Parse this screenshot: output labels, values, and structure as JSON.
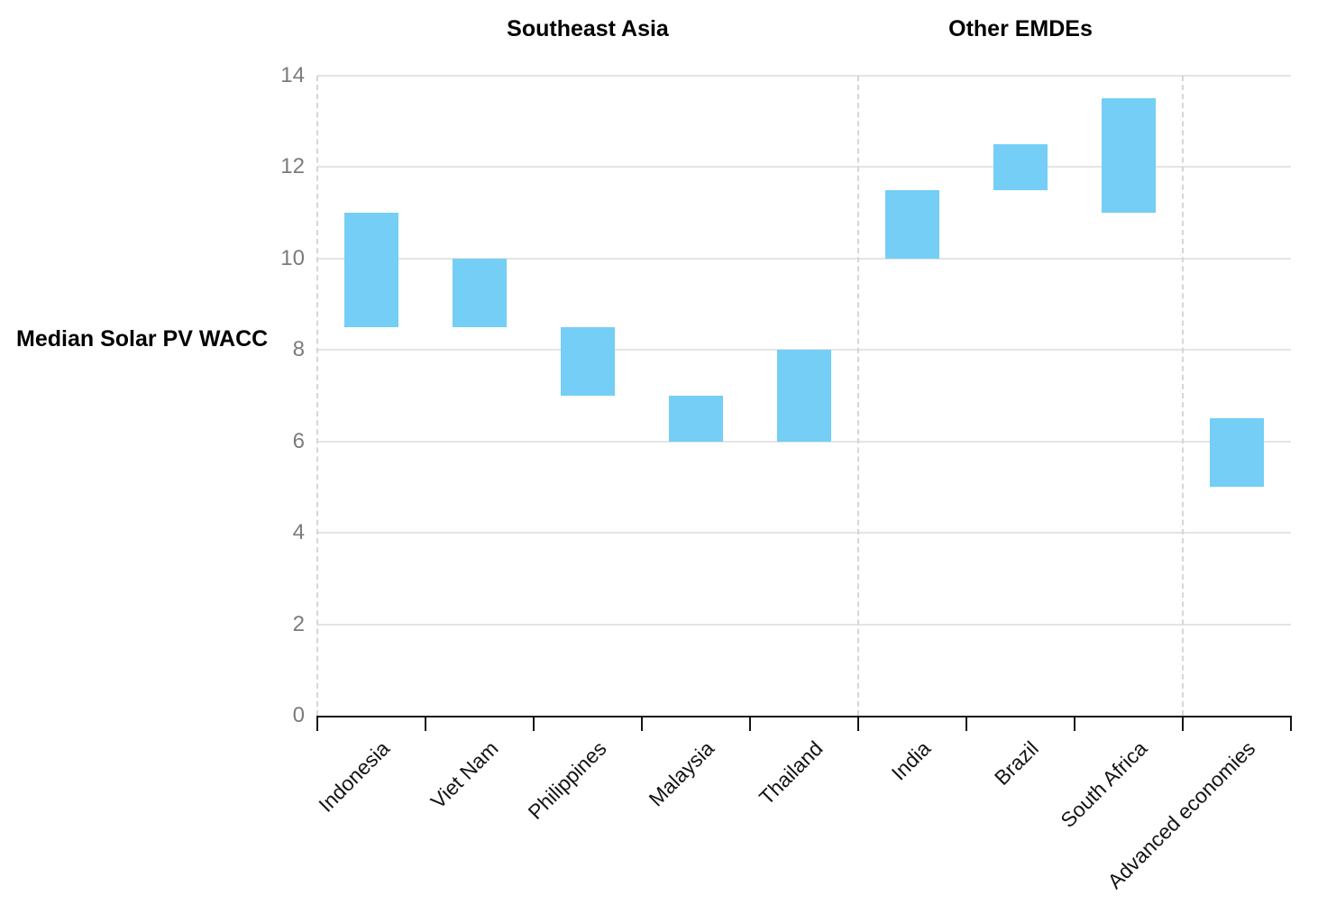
{
  "chart_data": {
    "type": "bar",
    "subtype": "floating-range-bars",
    "title": "",
    "ylabel": "Median Solar PV WACC",
    "xlabel": "",
    "ylim": [
      0,
      14
    ],
    "yticks": [
      0,
      2,
      4,
      6,
      8,
      10,
      12,
      14
    ],
    "grid": "horizontal",
    "legend": "none",
    "bar_color": "#74CEF5",
    "categories": [
      "Indonesia",
      "Viet Nam",
      "Philippines",
      "Malaysia",
      "Thailand",
      "India",
      "Brazil",
      "South Africa",
      "Advanced economies"
    ],
    "series": [
      {
        "name": "Median Solar PV WACC range",
        "ranges": [
          {
            "category": "Indonesia",
            "low": 8.5,
            "high": 11
          },
          {
            "category": "Viet Nam",
            "low": 8.5,
            "high": 10
          },
          {
            "category": "Philippines",
            "low": 7,
            "high": 8.5
          },
          {
            "category": "Malaysia",
            "low": 6,
            "high": 7
          },
          {
            "category": "Thailand",
            "low": 6,
            "high": 8
          },
          {
            "category": "India",
            "low": 10,
            "high": 11.5
          },
          {
            "category": "Brazil",
            "low": 11.5,
            "high": 12.5
          },
          {
            "category": "South Africa",
            "low": 11,
            "high": 13.5
          },
          {
            "category": "Advanced economies",
            "low": 5,
            "high": 6.5
          }
        ]
      }
    ],
    "group_headers": [
      {
        "label": "Southeast Asia",
        "from_category": 0,
        "to_category": 4
      },
      {
        "label": "Other EMDEs",
        "from_category": 5,
        "to_category": 7
      }
    ],
    "separator_boundaries": [
      0,
      5,
      8
    ],
    "colors": {
      "bar": "#74CEF5",
      "gridline": "#e4e4e4",
      "separator_dashed": "#d6d6d6",
      "axis": "#141414",
      "ytick_text": "#7b7b7b",
      "xtick_text": "#141414"
    }
  }
}
